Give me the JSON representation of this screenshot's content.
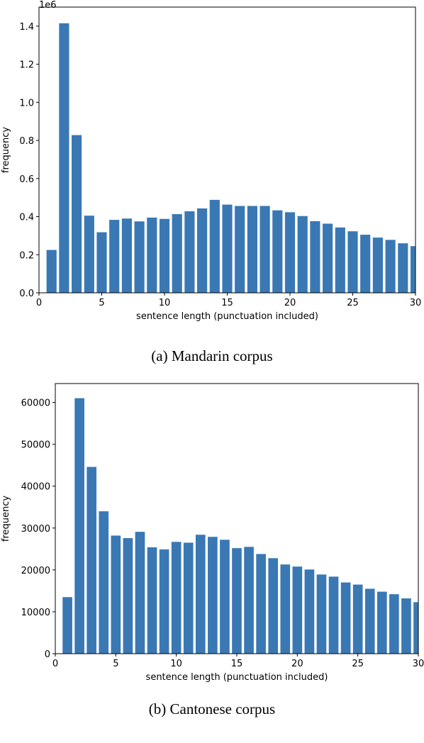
{
  "captions": {
    "a": "(a) Mandarin corpus",
    "b": "(b) Cantonese corpus"
  },
  "bar_color": "#3a78b4",
  "chart_data": [
    {
      "type": "bar",
      "title": "",
      "xlabel": "sentence length (punctuation included)",
      "ylabel": "frequency",
      "y_scale_label": "1e6",
      "xlim": [
        0,
        30
      ],
      "ylim": [
        0,
        1.5
      ],
      "xticks": [
        0,
        5,
        10,
        15,
        20,
        25,
        30
      ],
      "xtick_labels": [
        "0",
        "5",
        "10",
        "15",
        "20",
        "25",
        "30"
      ],
      "yticks": [
        0,
        0.2,
        0.4,
        0.6,
        0.8,
        1.0,
        1.2,
        1.4
      ],
      "ytick_labels": [
        "0.0",
        "0.2",
        "0.4",
        "0.6",
        "0.8",
        "1.0",
        "1.2",
        "1.4"
      ],
      "grid": false,
      "x": [
        1,
        2,
        3,
        4,
        5,
        6,
        7,
        8,
        9,
        10,
        11,
        12,
        13,
        14,
        15,
        16,
        17,
        18,
        19,
        20,
        21,
        22,
        23,
        24,
        25,
        26,
        27,
        28,
        29,
        30
      ],
      "values": [
        0.225,
        1.415,
        0.828,
        0.405,
        0.318,
        0.383,
        0.39,
        0.375,
        0.395,
        0.388,
        0.413,
        0.428,
        0.443,
        0.488,
        0.463,
        0.456,
        0.456,
        0.456,
        0.433,
        0.423,
        0.403,
        0.376,
        0.363,
        0.343,
        0.323,
        0.305,
        0.29,
        0.278,
        0.26,
        0.245
      ]
    },
    {
      "type": "bar",
      "title": "",
      "xlabel": "sentence length (punctuation included)",
      "ylabel": "frequency",
      "xlim": [
        0,
        30
      ],
      "ylim": [
        0,
        64500
      ],
      "xticks": [
        0,
        5,
        10,
        15,
        20,
        25,
        30
      ],
      "xtick_labels": [
        "0",
        "5",
        "10",
        "15",
        "20",
        "25",
        "30"
      ],
      "yticks": [
        0,
        10000,
        20000,
        30000,
        40000,
        50000,
        60000
      ],
      "ytick_labels": [
        "0",
        "10000",
        "20000",
        "30000",
        "40000",
        "50000",
        "60000"
      ],
      "grid": false,
      "x": [
        1,
        2,
        3,
        4,
        5,
        6,
        7,
        8,
        9,
        10,
        11,
        12,
        13,
        14,
        15,
        16,
        17,
        18,
        19,
        20,
        21,
        22,
        23,
        24,
        25,
        26,
        27,
        28,
        29,
        30
      ],
      "values": [
        13500,
        61000,
        44600,
        34000,
        28200,
        27600,
        29100,
        25400,
        24900,
        26700,
        26500,
        28400,
        27900,
        27200,
        25200,
        25500,
        23800,
        22800,
        21300,
        20800,
        20100,
        18900,
        18400,
        17000,
        16500,
        15500,
        14800,
        14200,
        13200,
        12300
      ]
    }
  ]
}
